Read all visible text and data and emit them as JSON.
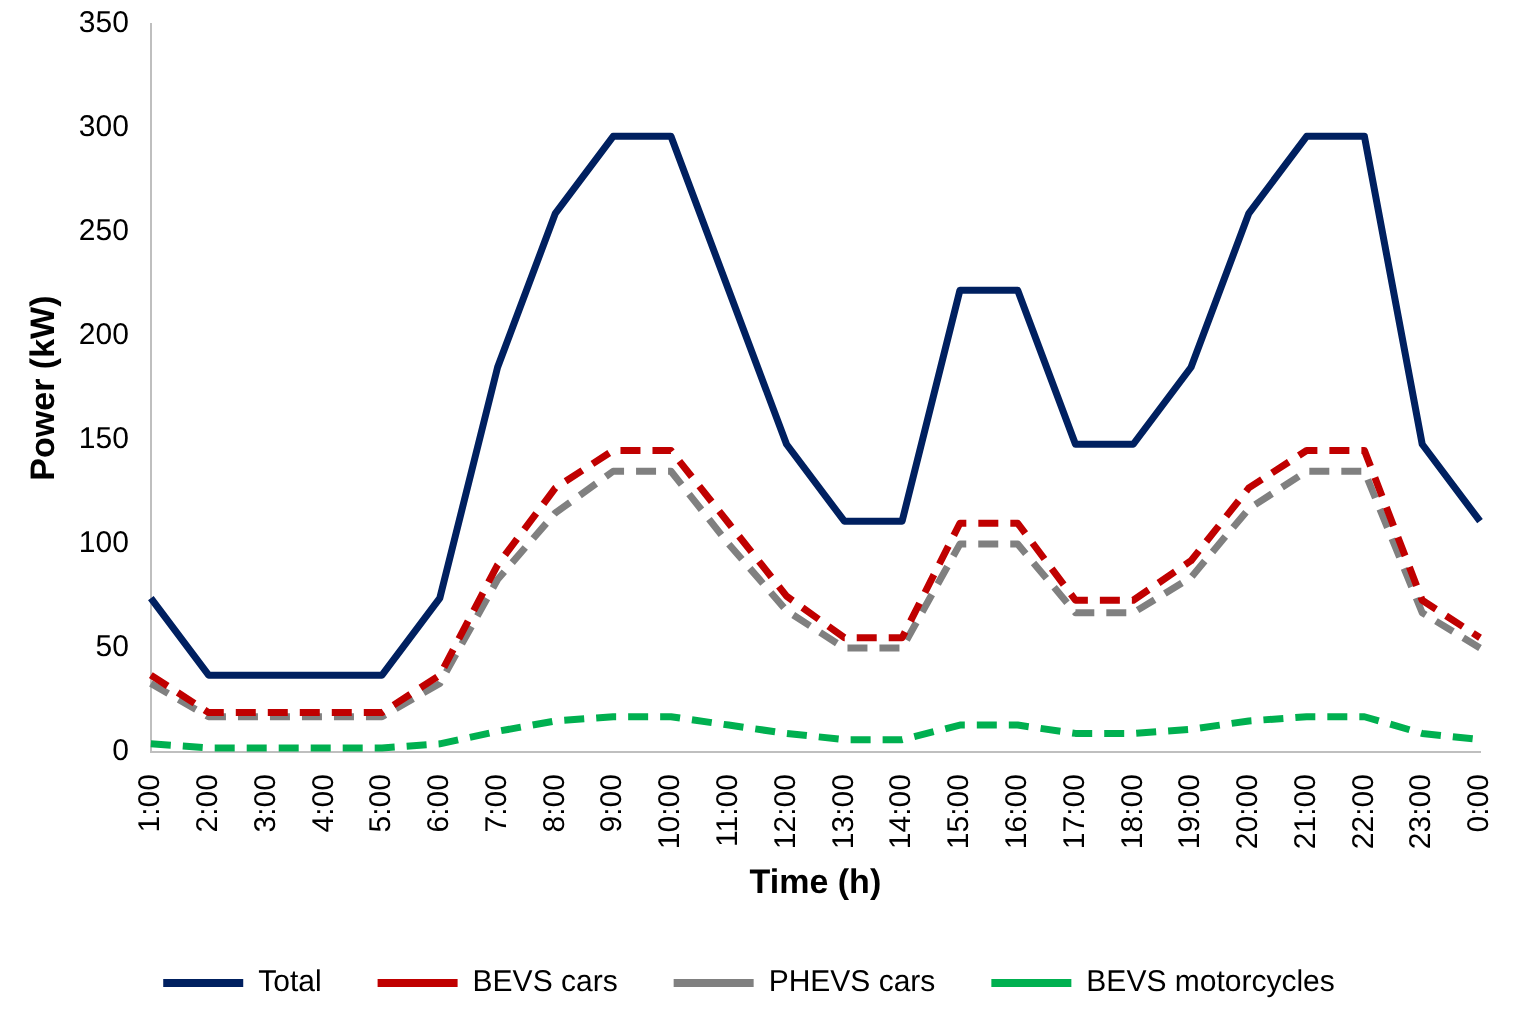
{
  "chart_data": {
    "type": "line",
    "xlabel": "Time (h)",
    "ylabel": "Power (kW)",
    "categories": [
      "1:00",
      "2:00",
      "3:00",
      "4:00",
      "5:00",
      "6:00",
      "7:00",
      "8:00",
      "9:00",
      "10:00",
      "11:00",
      "12:00",
      "13:00",
      "14:00",
      "15:00",
      "16:00",
      "17:00",
      "18:00",
      "19:00",
      "20:00",
      "21:00",
      "22:00",
      "23:00",
      "0:00"
    ],
    "series": [
      {
        "name": "Total",
        "color": "#002060",
        "line_style": "solid",
        "values": [
          74,
          37,
          37,
          37,
          37,
          74,
          185,
          259,
          296,
          296,
          222,
          148,
          111,
          111,
          222,
          222,
          148,
          148,
          185,
          259,
          296,
          296,
          148,
          111
        ]
      },
      {
        "name": "BEVS cars",
        "color": "#c00000",
        "line_style": "dashed",
        "values": [
          37,
          19,
          19,
          19,
          19,
          37,
          90,
          127,
          145,
          145,
          110,
          75,
          55,
          55,
          110,
          110,
          73,
          73,
          92,
          127,
          145,
          145,
          73,
          55
        ]
      },
      {
        "name": "PHEVS cars",
        "color": "#808080",
        "line_style": "dashed",
        "values": [
          33,
          17,
          17,
          17,
          17,
          33,
          83,
          115,
          135,
          135,
          100,
          68,
          50,
          50,
          100,
          100,
          67,
          67,
          84,
          117,
          135,
          135,
          67,
          50
        ]
      },
      {
        "name": "BEVS motorcycles",
        "color": "#00b050",
        "line_style": "dashed",
        "values": [
          4,
          2,
          2,
          2,
          2,
          4,
          10,
          15,
          17,
          17,
          13,
          9,
          6,
          6,
          13,
          13,
          9,
          9,
          11,
          15,
          17,
          17,
          9,
          6
        ]
      }
    ],
    "ylim": [
      0,
      350
    ],
    "yticks": [
      0,
      50,
      100,
      150,
      200,
      250,
      300,
      350
    ],
    "grid": false,
    "legend": "bottom",
    "marker": "none"
  }
}
